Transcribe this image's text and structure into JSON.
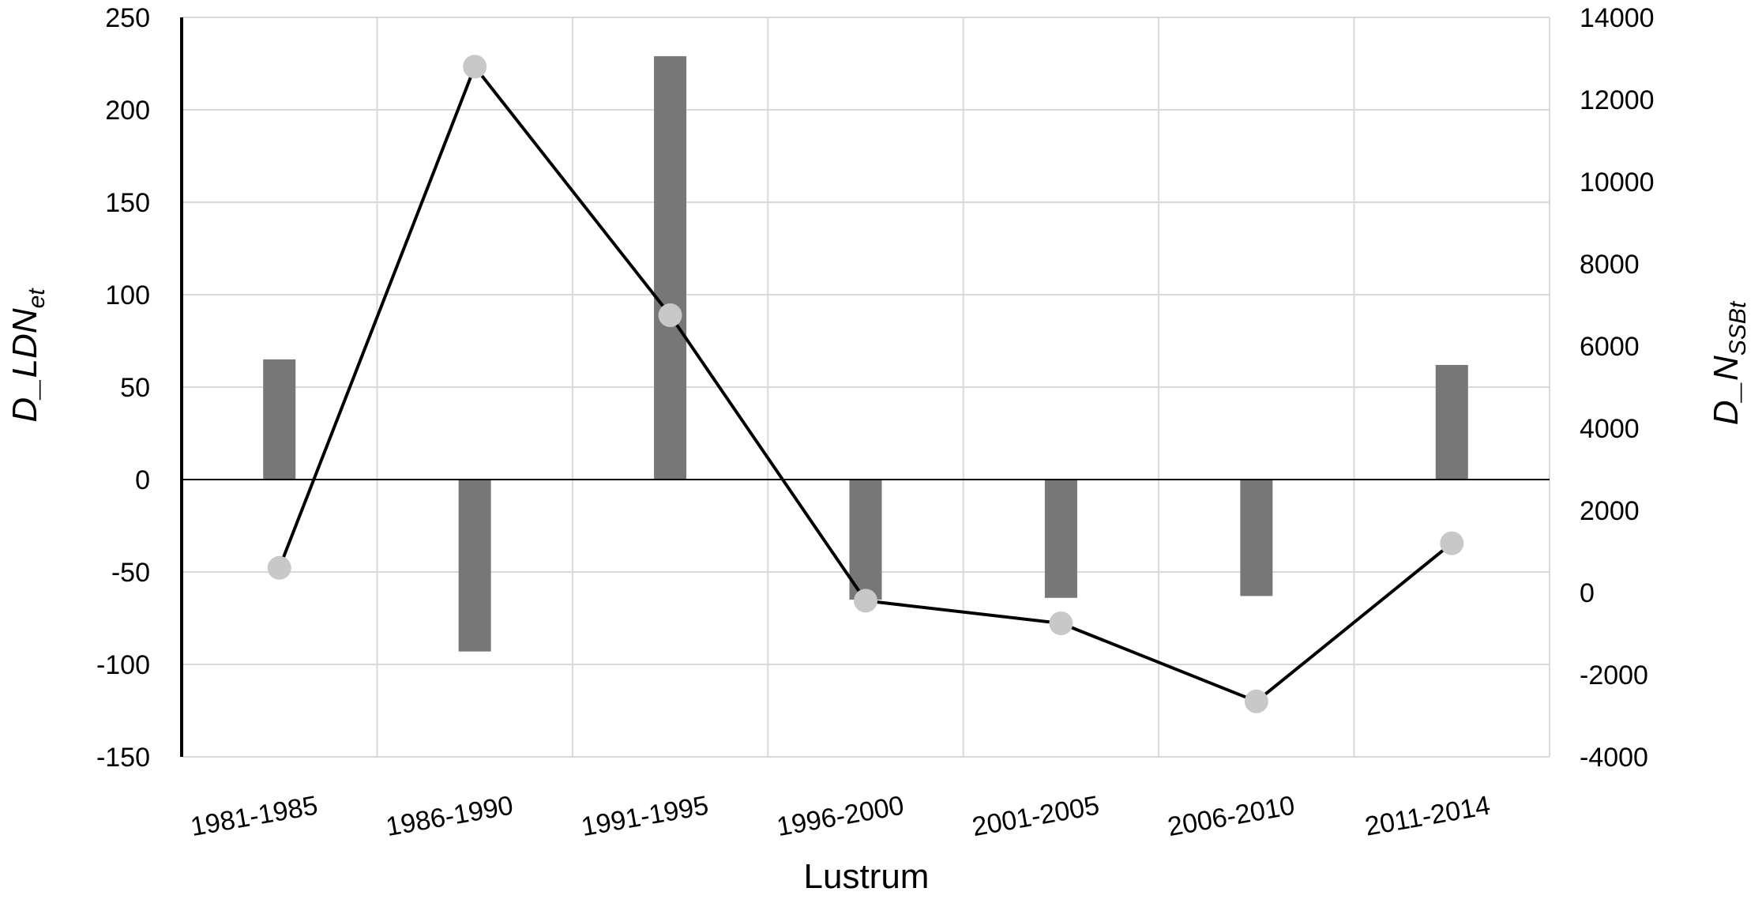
{
  "chart_data": {
    "type": "bar+line",
    "categories": [
      "1981-1985",
      "1986-1990",
      "1991-1995",
      "1996-2000",
      "2001-2005",
      "2006-2010",
      "2011-2014"
    ],
    "series": [
      {
        "type": "bar",
        "axis": "left",
        "values": [
          65,
          -93,
          229,
          -65,
          -64,
          -63,
          62
        ],
        "color": "#777777"
      },
      {
        "type": "line",
        "axis": "right",
        "values": [
          600,
          12800,
          6750,
          -200,
          -750,
          -2650,
          1200
        ],
        "line_color": "#000000",
        "marker_color": "#c8c8c8"
      }
    ],
    "xlabel": "Lustrum",
    "ylabel_left": {
      "main": "D_LDN",
      "sub": "et"
    },
    "ylabel_right": {
      "main": "D_N",
      "sub": "SSBt"
    },
    "ylim_left": [
      -150,
      250
    ],
    "yticks_left": [
      -150,
      -100,
      -50,
      0,
      50,
      100,
      150,
      200,
      250
    ],
    "ylim_right": [
      -4000,
      14000
    ],
    "yticks_right": [
      -4000,
      -2000,
      0,
      2000,
      4000,
      6000,
      8000,
      10000,
      12000,
      14000
    ],
    "grid": true,
    "legend": "none"
  }
}
